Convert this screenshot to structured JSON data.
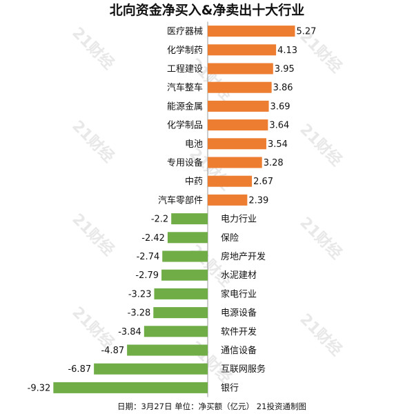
{
  "chart_data": {
    "type": "bar",
    "orientation": "horizontal",
    "title": "北向资金净买入&净卖出十大行业",
    "categories": [
      "医疗器械",
      "化学制药",
      "工程建设",
      "汽车整车",
      "能源金属",
      "化学制品",
      "电池",
      "专用设备",
      "中药",
      "汽车零部件",
      "电力行业",
      "保险",
      "房地产开发",
      "水泥建材",
      "家电行业",
      "电源设备",
      "软件开发",
      "通信设备",
      "互联网服务",
      "银行"
    ],
    "values": [
      5.27,
      4.13,
      3.95,
      3.86,
      3.69,
      3.64,
      3.54,
      3.28,
      2.67,
      2.39,
      -2.2,
      -2.42,
      -2.74,
      -2.79,
      -3.23,
      -3.28,
      -3.84,
      -4.87,
      -6.87,
      -9.32
    ],
    "value_labels": [
      "5.27",
      "4.13",
      "3.95",
      "3.86",
      "3.69",
      "3.64",
      "3.54",
      "3.28",
      "2.67",
      "2.39",
      "-2.2",
      "-2.42",
      "-2.74",
      "-2.79",
      "-3.23",
      "-3.28",
      "-3.84",
      "-4.87",
      "-6.87",
      "-9.32"
    ],
    "colors": {
      "positive": "#ed7d31",
      "negative": "#70ad47",
      "axis": "#999999"
    },
    "footnote": "日期：3月27日 单位：净买额（亿元） 21投资通制图",
    "watermark": "21财经",
    "grid": false,
    "legend": "none"
  }
}
